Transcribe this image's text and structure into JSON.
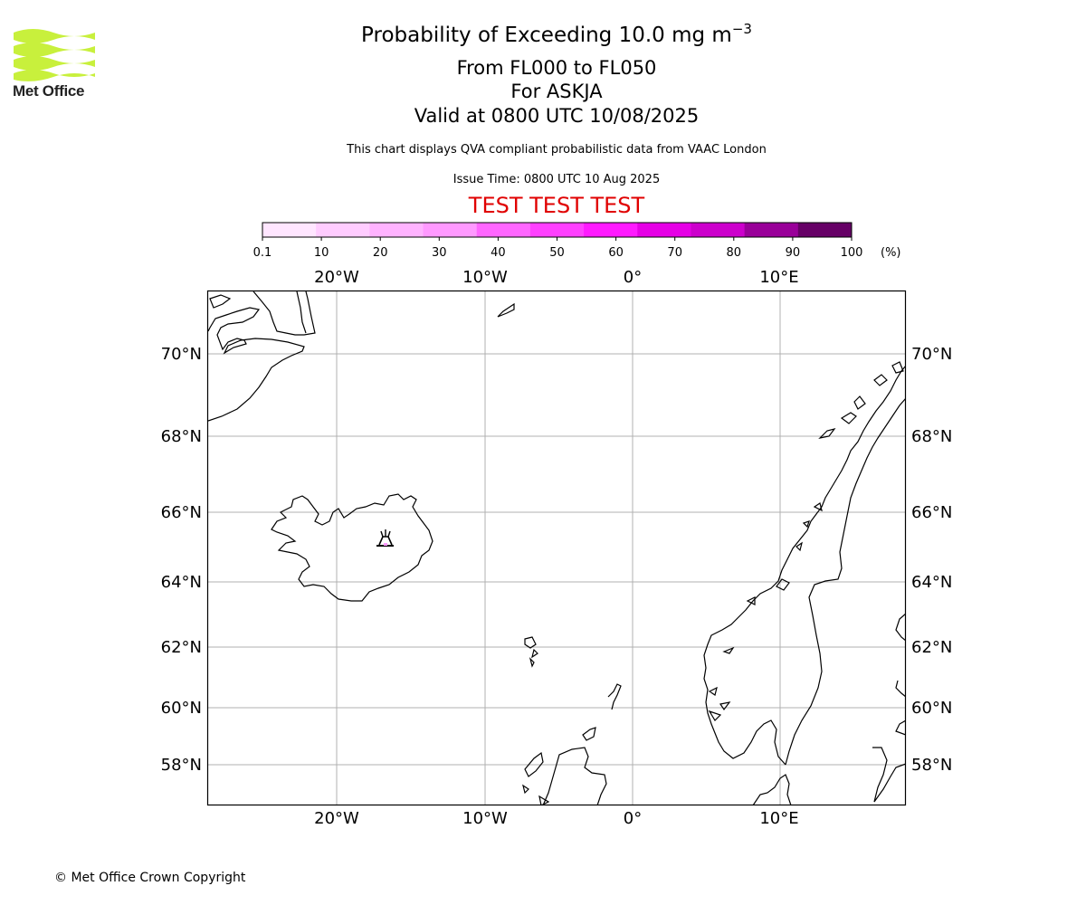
{
  "logo": {
    "text": "Met Office"
  },
  "title": {
    "main_prefix": "Probability of Exceeding 10.0 mg m",
    "main_exponent": "−3",
    "levels": "From FL000 to FL050",
    "volcano": "For ASKJA",
    "valid": "Valid at 0800 UTC 10/08/2025",
    "description": "This chart displays QVA compliant probabilistic data from VAAC London",
    "issue_time": "Issue Time: 0800 UTC 10 Aug 2025",
    "test_banner": "TEST TEST TEST"
  },
  "colorbar": {
    "ticks": [
      "0.1",
      "10",
      "20",
      "30",
      "40",
      "50",
      "60",
      "70",
      "80",
      "90",
      "100"
    ],
    "unit": "(%)",
    "colors": [
      "#ffe6ff",
      "#ffccff",
      "#ffb3ff",
      "#ff99ff",
      "#ff66ff",
      "#ff40ff",
      "#ff1aff",
      "#e600e6",
      "#cc00cc",
      "#990099",
      "#660066"
    ]
  },
  "map": {
    "lon_labels": [
      "20°W",
      "10°W",
      "0°",
      "10°E"
    ],
    "lat_labels": [
      "70°N",
      "68°N",
      "66°N",
      "64°N",
      "62°N",
      "60°N",
      "58°N"
    ],
    "colors": {
      "grid": "#b0b0b0",
      "coast": "#000000",
      "frame": "#000000"
    },
    "volcano_icon": "volcano-icon"
  },
  "footer": {
    "copyright": "© Met Office Crown Copyright"
  }
}
